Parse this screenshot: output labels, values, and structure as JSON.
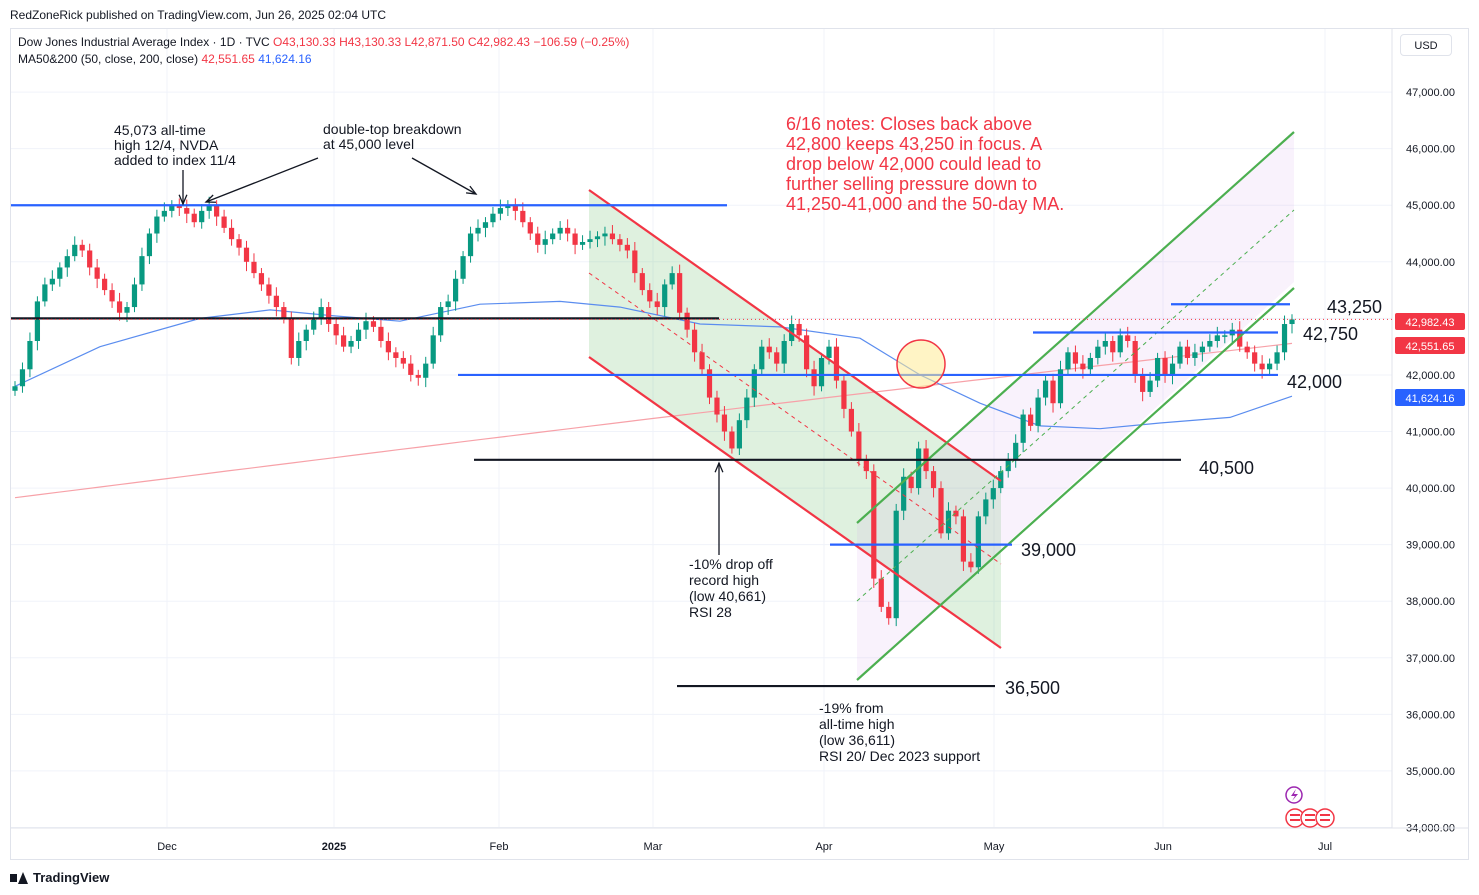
{
  "publisher": "RedZoneRick published on TradingView.com, Jun 26, 2025 02:04 UTC",
  "footer_brand": "TradingView",
  "currency_button": "USD",
  "legend": {
    "symbol": "Dow Jones Industrial Average Index · 1D · TVC",
    "o": "O43,130.33",
    "h": "H43,130.33",
    "l": "L42,871.50",
    "c": "C42,982.43",
    "chg": "−106.59 (−0.25%)",
    "ma_name": "MA50&200 (50, close, 200, close)",
    "ma50_val": "42,551.65",
    "ma200_val": "41,624.16"
  },
  "colors": {
    "up": "#089981",
    "down": "#f23645",
    "blue_level": "#2962ff",
    "ma50": "#5b8def",
    "ma200": "#f7a1a8",
    "channel_red": "#f23645",
    "channel_green": "#4caf50",
    "note_red": "#f23645"
  },
  "chart_data": {
    "type": "candlestick",
    "ylim": [
      33900,
      47600
    ],
    "y_ticks": [
      "47,000.00",
      "46,000.00",
      "45,000.00",
      "44,000.00",
      "43,000.00",
      "42,000.00",
      "41,000.00",
      "40,000.00",
      "39,000.00",
      "38,000.00",
      "37,000.00",
      "36,000.00",
      "35,000.00",
      "34,000.00"
    ],
    "x_ticks": [
      "Dec",
      "2025",
      "Feb",
      "Mar",
      "Apr",
      "May",
      "Jun",
      "Jul"
    ],
    "price_labels": [
      {
        "text": "42,982.43",
        "value": 42982.43,
        "color": "#f23645"
      },
      {
        "text": "42,551.65",
        "value": 42551.65,
        "color": "#f23645"
      },
      {
        "text": "41,624.16",
        "value": 41624.16,
        "color": "#2962ff"
      }
    ],
    "levels": [
      {
        "label": "43,250",
        "value": 43250
      },
      {
        "label": "42,750",
        "value": 42750
      },
      {
        "label": "42,000",
        "value": 42000
      },
      {
        "label": "40,500",
        "value": 40500
      },
      {
        "label": "39,000",
        "value": 39000
      },
      {
        "label": "36,500",
        "value": 36500
      }
    ],
    "horizontal_lines": [
      {
        "value": 45000,
        "color": "blue"
      },
      {
        "value": 43000,
        "color": "black"
      },
      {
        "value": 42000,
        "color": "blue"
      },
      {
        "value": 40500,
        "color": "black"
      },
      {
        "value": 39000,
        "color": "blue"
      },
      {
        "value": 43250,
        "color": "blue"
      },
      {
        "value": 42750,
        "color": "blue"
      },
      {
        "value": 36500,
        "color": "black"
      }
    ],
    "annotations": {
      "ath": [
        "45,073 all-time",
        "high 12/4, NVDA",
        "added to index 11/4"
      ],
      "double_top": [
        "double-top breakdown",
        "at 45,000 level"
      ],
      "drop10": [
        "-10% drop off",
        "record high",
        "(low 40,661)",
        "RSI 28"
      ],
      "drop19": [
        "-19% from",
        "all-time high",
        "(low 36,611)",
        "RSI 20/ Dec 2023 support"
      ],
      "notes": [
        "6/16 notes: Closes back above",
        "42,800 keeps 43,250 in focus. A",
        "drop below 42,000 could lead to",
        "further selling pressure down to",
        "41,250-41,000 and the 50-day MA."
      ]
    },
    "closes": [
      41800,
      42100,
      42600,
      43300,
      43600,
      43700,
      43900,
      44100,
      44300,
      44200,
      43900,
      43700,
      43500,
      43300,
      43100,
      43200,
      43600,
      44100,
      44500,
      44800,
      44900,
      45000,
      44950,
      44850,
      44700,
      44900,
      45000,
      44800,
      44600,
      44400,
      44250,
      44000,
      43800,
      43600,
      43400,
      43200,
      43000,
      42300,
      42600,
      42800,
      43000,
      43200,
      42900,
      42700,
      42500,
      42600,
      42800,
      42950,
      42850,
      42600,
      42400,
      42300,
      42200,
      42000,
      41950,
      42200,
      42700,
      43200,
      43300,
      43700,
      44100,
      44500,
      44600,
      44700,
      44850,
      44950,
      45000,
      44900,
      44700,
      44500,
      44300,
      44400,
      44500,
      44600,
      44500,
      44300,
      44350,
      44400,
      44450,
      44500,
      44400,
      44300,
      44200,
      43800,
      43500,
      43300,
      43200,
      43600,
      43800,
      43100,
      42800,
      42400,
      42100,
      41600,
      41300,
      41000,
      40700,
      41200,
      41600,
      42100,
      42500,
      42400,
      42200,
      42600,
      42900,
      42700,
      42100,
      41800,
      42300,
      42500,
      41900,
      41400,
      41000,
      40500,
      40300,
      38400,
      37900,
      37700,
      39600,
      40200,
      40000,
      40700,
      40300,
      40000,
      39200,
      39600,
      39500,
      38700,
      38600,
      39500,
      39800,
      40000,
      40300,
      40500,
      40800,
      41300,
      41100,
      41600,
      41900,
      41500,
      42100,
      42400,
      42200,
      42100,
      42300,
      42500,
      42600,
      42400,
      42700,
      42600,
      42000,
      41700,
      41900,
      42300,
      42000,
      42200,
      42500,
      42300,
      42400,
      42500,
      42600,
      42700,
      42700,
      42800,
      42500,
      42400,
      42200,
      42100,
      42200,
      42400,
      42900,
      42982
    ]
  }
}
